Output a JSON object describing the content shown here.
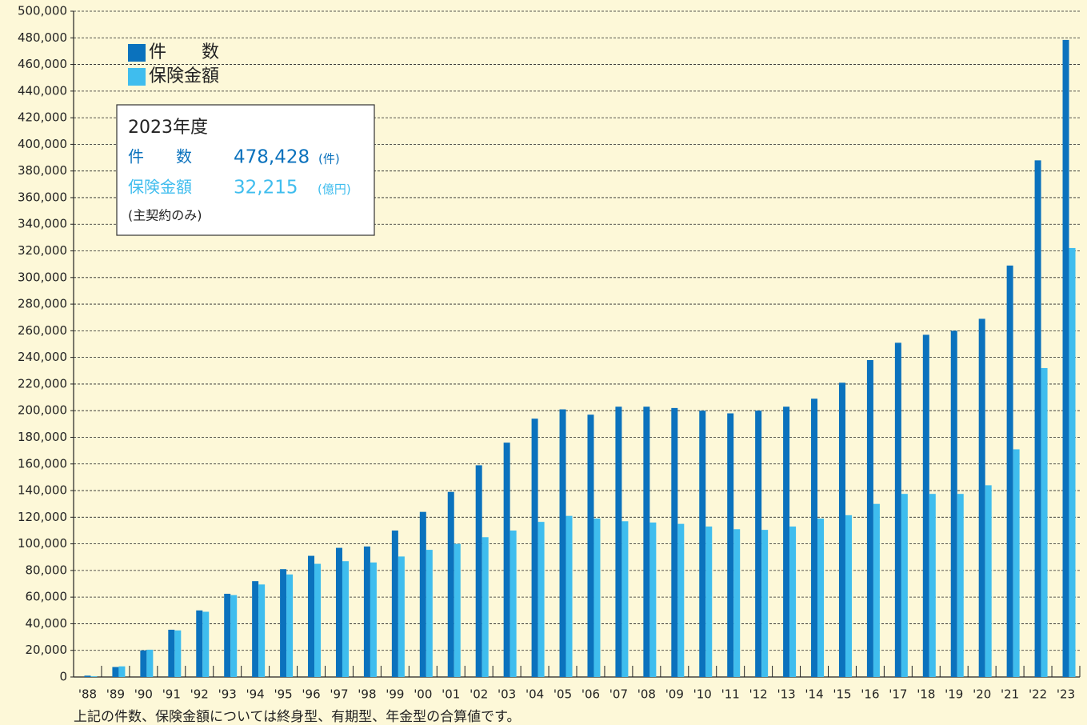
{
  "chart_data": {
    "type": "bar",
    "categories": [
      "'88",
      "'89",
      "'90",
      "'91",
      "'92",
      "'93",
      "'94",
      "'95",
      "'96",
      "'97",
      "'98",
      "'99",
      "'00",
      "'01",
      "'02",
      "'03",
      "'04",
      "'05",
      "'06",
      "'07",
      "'08",
      "'09",
      "'10",
      "'11",
      "'12",
      "'13",
      "'14",
      "'15",
      "'16",
      "'17",
      "'18",
      "'19",
      "'20",
      "'21",
      "'22",
      "'23"
    ],
    "series": [
      {
        "name": "件　　数",
        "color": "#0b72bd",
        "values": [
          1000,
          7500,
          20000,
          35500,
          50000,
          62500,
          72000,
          81000,
          91000,
          97000,
          98000,
          110000,
          124000,
          139000,
          159000,
          176000,
          194000,
          201000,
          197000,
          203000,
          203000,
          202000,
          200000,
          198000,
          200000,
          203000,
          209000,
          221000,
          238000,
          251000,
          257000,
          260000,
          269000,
          309000,
          388000,
          478428
        ]
      },
      {
        "name": "保険金額",
        "color": "#3fbdee",
        "values": [
          500,
          8000,
          20500,
          35000,
          49000,
          61500,
          69500,
          77000,
          85000,
          87000,
          86000,
          90500,
          95500,
          100000,
          105000,
          110000,
          116500,
          121000,
          119000,
          117000,
          116000,
          115000,
          113000,
          111000,
          110500,
          113000,
          119000,
          121500,
          130000,
          137500,
          137500,
          137500,
          144000,
          171000,
          232000,
          322150
        ]
      }
    ],
    "ylim": [
      0,
      500000
    ],
    "yticks": [
      0,
      {
        "value": 20000,
        "label": "20,000"
      },
      {
        "value": 40000,
        "label": "40,000"
      },
      {
        "value": 60000,
        "label": "60,000"
      },
      {
        "value": 80000,
        "label": "80,000"
      },
      {
        "value": 100000,
        "label": "100,000"
      },
      {
        "value": 120000,
        "label": "120,000"
      },
      {
        "value": 140000,
        "label": "140,000"
      },
      {
        "value": 160000,
        "label": "160,000"
      },
      {
        "value": 180000,
        "label": "180,000"
      },
      {
        "value": 200000,
        "label": "200,000"
      },
      {
        "value": 220000,
        "label": "220,000"
      },
      {
        "value": 240000,
        "label": "240,000"
      },
      {
        "value": 260000,
        "label": "260,000"
      },
      {
        "value": 280000,
        "label": "280,000"
      },
      {
        "value": 300000,
        "label": "300,000"
      },
      {
        "value": 320000,
        "label": "320,000"
      },
      {
        "value": 340000,
        "label": "340,000"
      },
      {
        "value": 360000,
        "label": "360,000"
      },
      {
        "value": 380000,
        "label": "380,000"
      },
      {
        "value": 400000,
        "label": "400,000"
      },
      {
        "value": 420000,
        "label": "420,000"
      },
      {
        "value": 440000,
        "label": "440,000"
      },
      {
        "value": 460000,
        "label": "460,000"
      },
      {
        "value": 480000,
        "label": "480,000"
      },
      {
        "value": 500000,
        "label": "500,000"
      }
    ],
    "grid": true,
    "legend": "top-left",
    "info_box": {
      "title": "2023年度",
      "rows": [
        {
          "label": "件　　数",
          "value": "478,428",
          "unit": "(件)"
        },
        {
          "label": "保険金額",
          "value": "32,215",
          "unit": "(億円)"
        }
      ],
      "note": "(主契約のみ)"
    },
    "footnote": "上記の件数、保険金額については終身型、有期型、年金型の合算値です。"
  }
}
